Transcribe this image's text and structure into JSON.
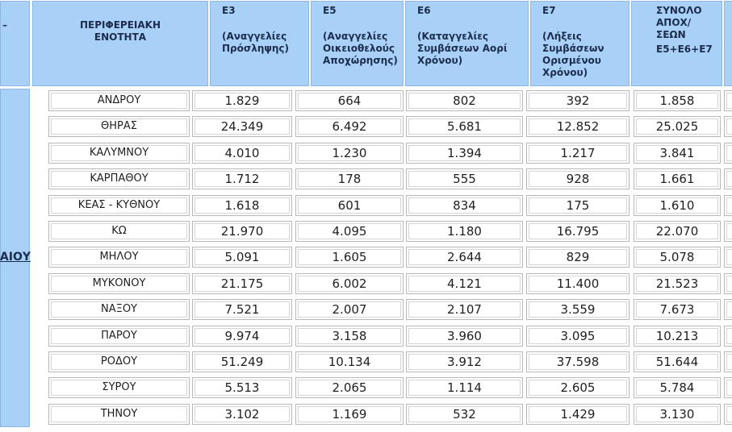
{
  "header": [
    {
      "text": "–"
    },
    {
      "text": "ΠΕΡΙΦΕΡΕΙΑΚΗ ΕΝΟΤΗΤΑ"
    },
    {
      "code": "E3",
      "desc": "(Αναγγελίες Πρόσληψης)"
    },
    {
      "code": "E5",
      "desc": "(Αναγγελίες Οικειοθελούς Αποχώρησης)"
    },
    {
      "code": "E6",
      "desc": "(Καταγγελίες Συμβάσεων Αορί Χρόνου)"
    },
    {
      "code": "E7",
      "desc": "(Λήξεις Συμβάσεων Ορισμένου Χρόνου)"
    },
    {
      "code": "ΣΥΝΟΛΟ ΑΠΟΧ/ΣΕΩΝ",
      "desc": "E5+E6+E7"
    }
  ],
  "group_label": "ΑΙΟΥ",
  "table": {
    "rows": [
      [
        "ΑΝΔΡΟΥ",
        "1.829",
        "664",
        "802",
        "392",
        "1.858"
      ],
      [
        "ΘΗΡΑΣ",
        "24.349",
        "6.492",
        "5.681",
        "12.852",
        "25.025"
      ],
      [
        "ΚΑΛΥΜΝΟΥ",
        "4.010",
        "1.230",
        "1.394",
        "1.217",
        "3.841"
      ],
      [
        "ΚΑΡΠΑΘΟΥ",
        "1.712",
        "178",
        "555",
        "928",
        "1.661"
      ],
      [
        "ΚΕΑΣ - ΚΥΘΝΟΥ",
        "1.618",
        "601",
        "834",
        "175",
        "1.610"
      ],
      [
        "ΚΩ",
        "21.970",
        "4.095",
        "1.180",
        "16.795",
        "22.070"
      ],
      [
        "ΜΗΛΟΥ",
        "5.091",
        "1.605",
        "2.644",
        "829",
        "5.078"
      ],
      [
        "ΜΥΚΟΝΟΥ",
        "21.175",
        "6.002",
        "4.121",
        "11.400",
        "21.523"
      ],
      [
        "ΝΑΞΟΥ",
        "7.521",
        "2.007",
        "2.107",
        "3.559",
        "7.673"
      ],
      [
        "ΠΑΡΟΥ",
        "9.974",
        "3.158",
        "3.960",
        "3.095",
        "10.213"
      ],
      [
        "ΡΟΔΟΥ",
        "51.249",
        "10.134",
        "3.912",
        "37.598",
        "51.644"
      ],
      [
        "ΣΥΡΟΥ",
        "5.513",
        "2.065",
        "1.114",
        "2.605",
        "5.784"
      ],
      [
        "ΤΗΝΟΥ",
        "3.102",
        "1.169",
        "532",
        "1.429",
        "3.130"
      ]
    ]
  }
}
